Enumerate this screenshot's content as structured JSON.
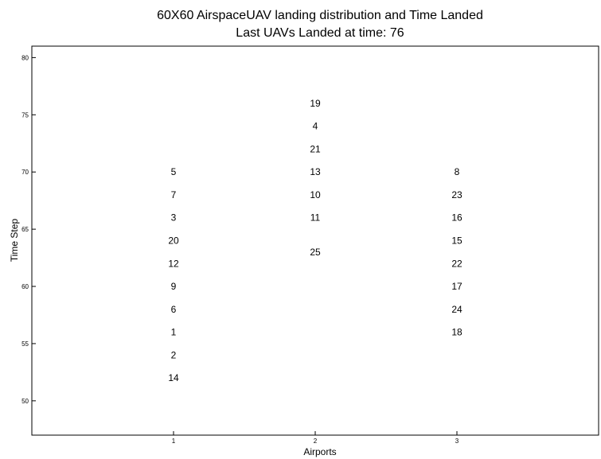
{
  "chart_data": {
    "type": "scatter",
    "title": "60X60 AirspaceUAV landing distribution and Time Landed",
    "subtitle": "Last UAVs Landed at time: 76",
    "xlabel": "Airports",
    "ylabel": "Time Step",
    "xlim": [
      0,
      4
    ],
    "ylim": [
      47,
      81
    ],
    "xticks": [
      1,
      2,
      3
    ],
    "yticks": [
      50,
      55,
      60,
      65,
      70,
      75,
      80
    ],
    "grid": false,
    "points": [
      {
        "x": 1,
        "y": 70,
        "label": "5"
      },
      {
        "x": 1,
        "y": 68,
        "label": "7"
      },
      {
        "x": 1,
        "y": 66,
        "label": "3"
      },
      {
        "x": 1,
        "y": 64,
        "label": "20"
      },
      {
        "x": 1,
        "y": 62,
        "label": "12"
      },
      {
        "x": 1,
        "y": 60,
        "label": "9"
      },
      {
        "x": 1,
        "y": 58,
        "label": "6"
      },
      {
        "x": 1,
        "y": 56,
        "label": "1"
      },
      {
        "x": 1,
        "y": 54,
        "label": "2"
      },
      {
        "x": 1,
        "y": 52,
        "label": "14"
      },
      {
        "x": 2,
        "y": 76,
        "label": "19"
      },
      {
        "x": 2,
        "y": 74,
        "label": "4"
      },
      {
        "x": 2,
        "y": 72,
        "label": "21"
      },
      {
        "x": 2,
        "y": 70,
        "label": "13"
      },
      {
        "x": 2,
        "y": 68,
        "label": "10"
      },
      {
        "x": 2,
        "y": 66,
        "label": "11"
      },
      {
        "x": 2,
        "y": 63,
        "label": "25"
      },
      {
        "x": 3,
        "y": 70,
        "label": "8"
      },
      {
        "x": 3,
        "y": 68,
        "label": "23"
      },
      {
        "x": 3,
        "y": 66,
        "label": "16"
      },
      {
        "x": 3,
        "y": 64,
        "label": "15"
      },
      {
        "x": 3,
        "y": 62,
        "label": "22"
      },
      {
        "x": 3,
        "y": 60,
        "label": "17"
      },
      {
        "x": 3,
        "y": 58,
        "label": "24"
      },
      {
        "x": 3,
        "y": 56,
        "label": "18"
      }
    ]
  }
}
